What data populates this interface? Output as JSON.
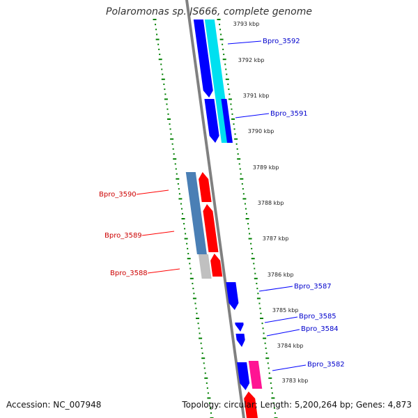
{
  "title": "Polaromonas sp. JS666, complete genome",
  "accession_text": "Accession: NC_007948",
  "summary_text": "Topology: circular; Length: 5,200,264 bp; Genes: 4,873",
  "colors": {
    "forward_gene": "#ff0000",
    "reverse_gene": "#0000ff",
    "cyan_feature": "#00e0f0",
    "steel_blue_feature": "#4a7fb5",
    "grey_feature": "#c0c0c0",
    "pink_feature": "#ff1493",
    "backbone": "#808080",
    "dotted_track": "#008000",
    "label_forward": "#cc0000",
    "label_reverse": "#0000cc"
  },
  "axis_ticks": [
    {
      "label": "3793 kbp"
    },
    {
      "label": "3792 kbp"
    },
    {
      "label": "3791 kbp"
    },
    {
      "label": "3790 kbp"
    },
    {
      "label": "3789 kbp"
    },
    {
      "label": "3788 kbp"
    },
    {
      "label": "3787 kbp"
    },
    {
      "label": "3786 kbp"
    },
    {
      "label": "3785 kbp"
    },
    {
      "label": "3784 kbp"
    },
    {
      "label": "3783 kbp"
    }
  ],
  "gene_labels_left": [
    {
      "name": "Bpro_3590",
      "strand": "forward"
    },
    {
      "name": "Bpro_3589",
      "strand": "forward"
    },
    {
      "name": "Bpro_3588",
      "strand": "forward"
    }
  ],
  "gene_labels_right": [
    {
      "name": "Bpro_3592",
      "strand": "reverse"
    },
    {
      "name": "Bpro_3591",
      "strand": "reverse"
    },
    {
      "name": "Bpro_3587",
      "strand": "reverse"
    },
    {
      "name": "Bpro_3585",
      "strand": "reverse"
    },
    {
      "name": "Bpro_3584",
      "strand": "reverse"
    },
    {
      "name": "Bpro_3582",
      "strand": "reverse"
    }
  ]
}
